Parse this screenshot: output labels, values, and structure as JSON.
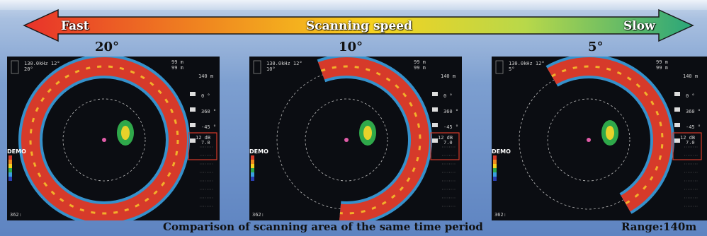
{
  "speed_arrow": {
    "left_label": "Fast",
    "center_label": "Scanning speed",
    "right_label": "Slow",
    "gradient_colors": [
      "#e8322a",
      "#f08a1f",
      "#f7d21e",
      "#b8d84a",
      "#2aa67a"
    ]
  },
  "panels": [
    {
      "angle_label": "20°",
      "tilt": "20°",
      "arc_degrees": 360,
      "freq": "130.0kHz 12°",
      "range_top": "99 m",
      "range_top2": "99 m",
      "range_scale": "140 m",
      "demo": "DEMO",
      "gain": "12 dB",
      "values": [
        "0 °",
        "360 °",
        "-45 °",
        "7.0"
      ],
      "footer": "362:"
    },
    {
      "angle_label": "10°",
      "tilt": "10°",
      "arc_degrees": 180,
      "freq": "130.0kHz 12°",
      "range_top": "99 m",
      "range_top2": "99 m",
      "range_scale": "140 m",
      "demo": "DEMO",
      "gain": "12 dB",
      "values": [
        "0 °",
        "360 °",
        "-45 °",
        "7.0"
      ],
      "footer": "362:"
    },
    {
      "angle_label": "5°",
      "tilt": "5°",
      "arc_degrees": 90,
      "freq": "130.0kHz 12°",
      "range_top": "99 m",
      "range_top2": "99 m",
      "range_scale": "140 m",
      "demo": "DEMO",
      "gain": "12 dB",
      "values": [
        "0 °",
        "360 °",
        "-45 °",
        "7.0"
      ],
      "footer": "362:"
    }
  ],
  "caption": "Comparison of scanning area of the same time period",
  "range_note": "Range:140m"
}
